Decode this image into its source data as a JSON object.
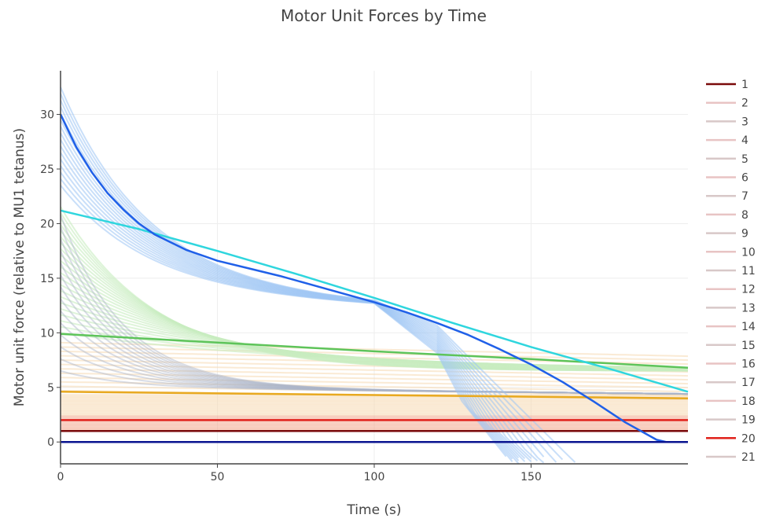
{
  "chart_data": {
    "type": "line",
    "title": "Motor Unit Forces by Time",
    "xlabel": "Time (s)",
    "ylabel": "Motor unit force (relative to MU1 tetanus)",
    "xlim": [
      0,
      200
    ],
    "ylim": [
      -2,
      34
    ],
    "xticks": [
      0,
      50,
      100,
      150
    ],
    "yticks": [
      0,
      5,
      10,
      15,
      20,
      25,
      30
    ],
    "grid": true,
    "legend_position": "right",
    "legend": [
      "1",
      "2",
      "3",
      "4",
      "5",
      "6",
      "7",
      "8",
      "9",
      "10",
      "11",
      "12",
      "13",
      "14",
      "15",
      "16",
      "17",
      "18",
      "19",
      "20",
      "21"
    ],
    "highlighted_series": [
      {
        "name": "1",
        "color": "#7a0a0a",
        "x": [
          0,
          200
        ],
        "y": [
          1.0,
          1.0
        ]
      },
      {
        "name": "20",
        "color": "#e0201a",
        "x": [
          0,
          200
        ],
        "y": [
          2.0,
          2.0
        ]
      },
      {
        "name": "orange",
        "color": "#e8a920",
        "x": [
          0,
          50,
          100,
          150,
          200
        ],
        "y": [
          4.6,
          4.45,
          4.3,
          4.15,
          4.0
        ]
      },
      {
        "name": "green",
        "color": "#5ec45a",
        "x": [
          0,
          50,
          100,
          150,
          200
        ],
        "y": [
          9.9,
          9.1,
          8.3,
          7.6,
          6.8
        ]
      },
      {
        "name": "cyan",
        "color": "#2fd6de",
        "x": [
          0,
          25,
          50,
          75,
          100,
          125,
          150,
          175,
          200
        ],
        "y": [
          21.2,
          19.5,
          17.5,
          15.4,
          13.2,
          10.9,
          8.7,
          6.7,
          4.6
        ]
      },
      {
        "name": "blue",
        "color": "#2060e8",
        "x": [
          0,
          5,
          10,
          15,
          20,
          25,
          30,
          40,
          50,
          60,
          70,
          80,
          90,
          100,
          110,
          120,
          130,
          140,
          150,
          160,
          170,
          180,
          190,
          193
        ],
        "y": [
          30.0,
          27.0,
          24.7,
          22.8,
          21.3,
          20.0,
          19.0,
          17.6,
          16.6,
          15.9,
          15.2,
          14.4,
          13.6,
          12.8,
          11.9,
          10.9,
          9.8,
          8.5,
          7.1,
          5.5,
          3.7,
          1.8,
          0.2,
          0.0
        ]
      },
      {
        "name": "navy",
        "color": "#0a1490",
        "x": [
          0,
          200
        ],
        "y": [
          0.0,
          0.0
        ]
      }
    ],
    "colors": {
      "legend_1": "#7a0a0a",
      "legend_20": "#e0201a",
      "legend_faint": "#e8c4c4",
      "legend_faint_alt": "#d8c8c8",
      "band_low": "#f2a58c",
      "band_mid": "#f6d8b0",
      "band_green": "#c8ecc0",
      "band_blue": "#9cc4f4",
      "band_grey": "#aab4c8"
    }
  }
}
